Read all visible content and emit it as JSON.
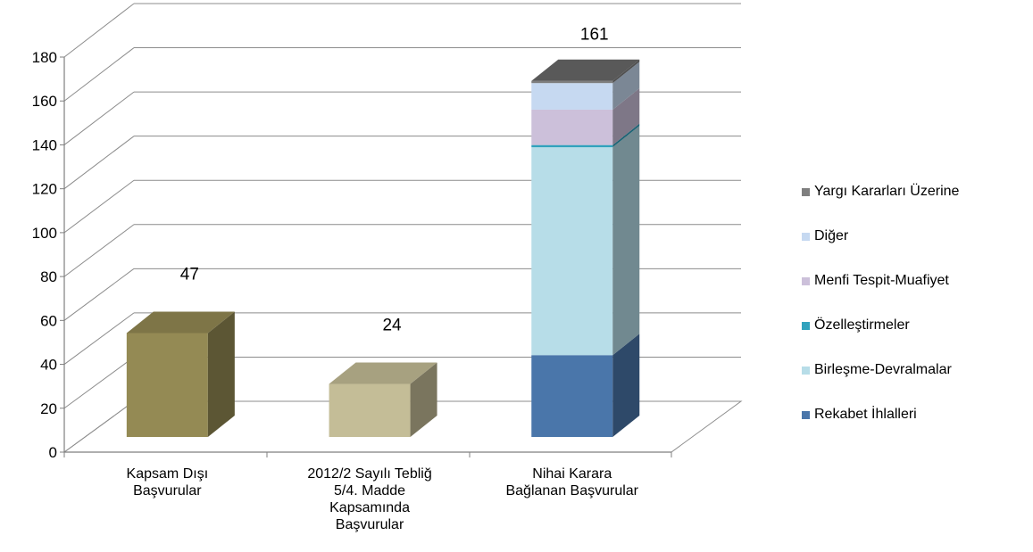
{
  "chart_data": {
    "type": "bar",
    "stacked": true,
    "three_d": true,
    "categories": [
      [
        "Kapsam Dışı",
        "Başvurular"
      ],
      [
        "2012/2 Sayılı Tebliğ",
        "5/4. Madde",
        "Kapsamında",
        "Başvurular"
      ],
      [
        "Nihai Karara",
        "Bağlanan Başvurular"
      ]
    ],
    "totals": [
      "47",
      "24",
      "161"
    ],
    "ylim": [
      0,
      180
    ],
    "yticks": [
      "0",
      "20",
      "40",
      "60",
      "80",
      "100",
      "120",
      "140",
      "160",
      "180"
    ],
    "grid": true,
    "legend_position": "right",
    "series": [
      {
        "name": "Kapsam Dışı Başvurular",
        "color": "#948a54",
        "values": [
          47,
          0,
          0
        ],
        "in_legend": false
      },
      {
        "name": "2012/2 Sayılı Tebliğ 5/4. Madde Kapsamında Başvurular",
        "color": "#c4bd97",
        "values": [
          0,
          24,
          0
        ],
        "in_legend": false
      },
      {
        "name": "Rekabet İhlalleri",
        "color": "#4a76aa",
        "values": [
          0,
          0,
          37
        ],
        "in_legend": true
      },
      {
        "name": "Birleşme-Devralmalar",
        "color": "#b7dde8",
        "values": [
          0,
          0,
          94
        ],
        "in_legend": true
      },
      {
        "name": "Özelleştirmeler",
        "color": "#31a2bd",
        "values": [
          0,
          0,
          1
        ],
        "in_legend": true
      },
      {
        "name": "Menfi Tespit-Muafiyet",
        "color": "#ccc0da",
        "values": [
          0,
          0,
          16
        ],
        "in_legend": true
      },
      {
        "name": "Diğer",
        "color": "#c6d9f1",
        "values": [
          0,
          0,
          12
        ],
        "in_legend": true
      },
      {
        "name": "Yargı Kararları Üzerine",
        "color": "#7f7f7f",
        "values": [
          0,
          0,
          1
        ],
        "in_legend": true
      }
    ]
  },
  "legend": [
    {
      "label": "Yargı Kararları Üzerine",
      "color": "#7f7f7f"
    },
    {
      "label": "Diğer",
      "color": "#c6d9f1"
    },
    {
      "label": "Menfi Tespit-Muafiyet",
      "color": "#ccc0da"
    },
    {
      "label": "Özelleştirmeler",
      "color": "#31a2bd"
    },
    {
      "label": "Birleşme-Devralmalar",
      "color": "#b7dde8"
    },
    {
      "label": "Rekabet İhlalleri",
      "color": "#4a76aa"
    }
  ]
}
